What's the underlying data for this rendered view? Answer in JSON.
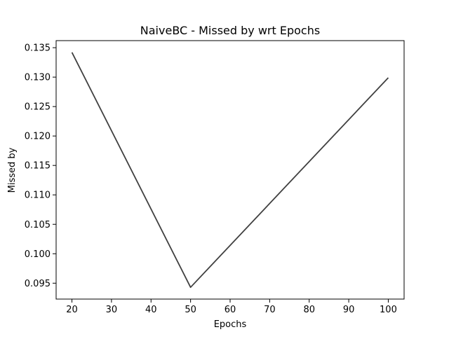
{
  "chart_data": {
    "type": "line",
    "title": "NaiveBC - Missed by wrt Epochs",
    "xlabel": "Epochs",
    "ylabel": "Missed by",
    "x": [
      20,
      50,
      100
    ],
    "series": [
      {
        "values": [
          0.1342,
          0.0943,
          0.1299
        ]
      }
    ],
    "xlim": [
      16,
      104
    ],
    "ylim": [
      0.0923,
      0.1362
    ],
    "xticks": [
      20,
      30,
      40,
      50,
      60,
      70,
      80,
      90,
      100
    ],
    "xtick_labels": [
      "20",
      "30",
      "40",
      "50",
      "60",
      "70",
      "80",
      "90",
      "100"
    ],
    "yticks": [
      0.095,
      0.1,
      0.105,
      0.11,
      0.115,
      0.12,
      0.125,
      0.13,
      0.135
    ],
    "ytick_labels": [
      "0.095",
      "0.100",
      "0.105",
      "0.110",
      "0.115",
      "0.120",
      "0.125",
      "0.130",
      "0.135"
    ],
    "grid": false,
    "line_color": "#404040"
  }
}
